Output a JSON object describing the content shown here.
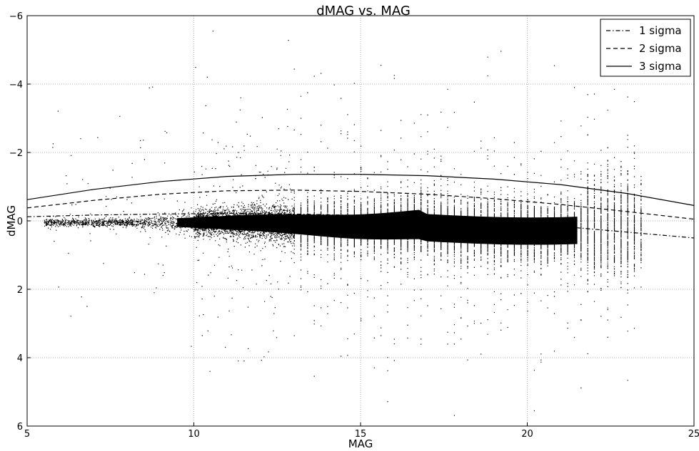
{
  "chart_data": {
    "type": "scatter",
    "title": "dMAG vs. MAG",
    "xlabel": "MAG",
    "ylabel": "dMAG",
    "xlim": [
      5,
      25
    ],
    "ylim": [
      6,
      -6
    ],
    "y_axis_inverted": true,
    "grid": true,
    "legend_position": "top-right",
    "x_ticks": [
      "5",
      "10",
      "15",
      "20",
      "25"
    ],
    "y_ticks": [
      "−6",
      "−4",
      "−2",
      "0",
      "2",
      "4",
      "6"
    ],
    "x_tick_values": [
      5,
      10,
      15,
      20,
      25
    ],
    "y_tick_values": [
      -6,
      -4,
      -2,
      0,
      2,
      4,
      6
    ],
    "series": [
      {
        "name": "1 sigma",
        "style": "dashdot",
        "x": [
          5,
          7,
          9,
          11,
          13,
          15,
          17,
          19,
          21,
          23,
          25
        ],
        "y": [
          -0.12,
          -0.17,
          -0.2,
          -0.22,
          -0.2,
          -0.16,
          -0.08,
          0.03,
          0.16,
          0.33,
          0.5
        ]
      },
      {
        "name": "2 sigma",
        "style": "dashed",
        "x": [
          5,
          7,
          9,
          11,
          13,
          15,
          17,
          19,
          21,
          23,
          25
        ],
        "y": [
          -0.38,
          -0.6,
          -0.78,
          -0.88,
          -0.9,
          -0.86,
          -0.78,
          -0.65,
          -0.48,
          -0.27,
          -0.05
        ]
      },
      {
        "name": "3 sigma",
        "style": "solid",
        "x": [
          5,
          7,
          9,
          11,
          13,
          15,
          17,
          19,
          21,
          23,
          25
        ],
        "y": [
          -0.62,
          -0.92,
          -1.15,
          -1.3,
          -1.36,
          -1.36,
          -1.32,
          -1.22,
          -1.06,
          -0.8,
          -0.45
        ]
      }
    ],
    "points_note_color": "#000000"
  }
}
